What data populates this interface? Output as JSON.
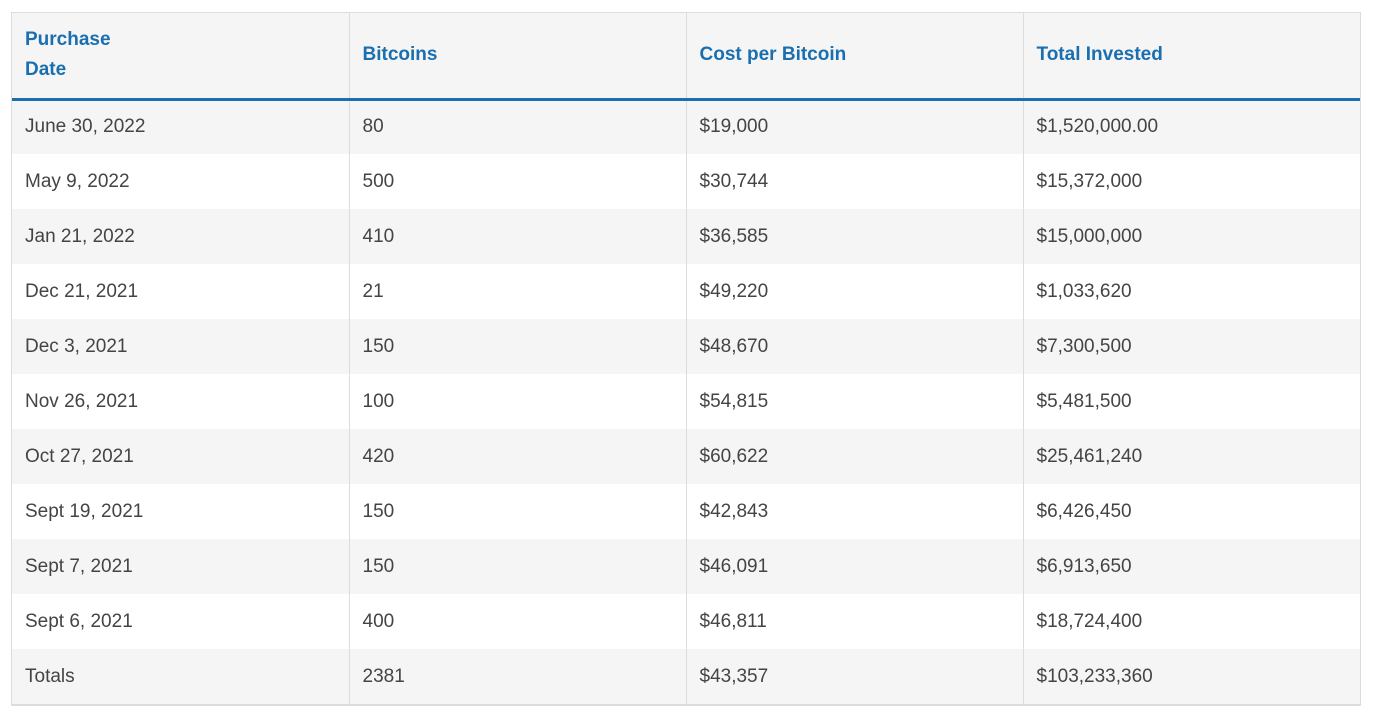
{
  "table": {
    "headers": [
      "Purchase Date",
      "Bitcoins",
      "Cost per Bitcoin",
      "Total Invested"
    ],
    "rows": [
      [
        "June 30, 2022",
        "80",
        "$19,000",
        "$1,520,000.00"
      ],
      [
        "May 9, 2022",
        "500",
        "$30,744",
        "$15,372,000"
      ],
      [
        "Jan 21, 2022",
        "410",
        "$36,585",
        "$15,000,000"
      ],
      [
        "Dec 21, 2021",
        "21",
        "$49,220",
        "$1,033,620"
      ],
      [
        "Dec 3, 2021",
        "150",
        "$48,670",
        "$7,300,500"
      ],
      [
        "Nov 26, 2021",
        "100",
        "$54,815",
        "$5,481,500"
      ],
      [
        "Oct 27, 2021",
        "420",
        "$60,622",
        "$25,461,240"
      ],
      [
        "Sept 19, 2021",
        "150",
        "$42,843",
        "$6,426,450"
      ],
      [
        "Sept 7, 2021",
        "150",
        "$46,091",
        "$6,913,650"
      ],
      [
        "Sept 6, 2021",
        "400",
        "$46,811",
        "$18,724,400"
      ],
      [
        "Totals",
        "2381",
        "$43,357",
        "$103,233,360"
      ]
    ]
  },
  "colors": {
    "header_text": "#1a6fb0",
    "header_rule": "#1a6fb0",
    "body_text": "#444444",
    "stripe": "#f5f5f5"
  }
}
